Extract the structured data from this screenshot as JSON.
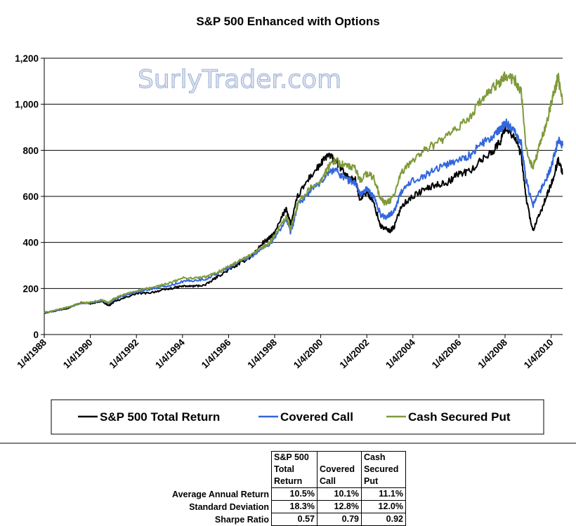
{
  "chart_data": {
    "type": "line",
    "title": "S&P 500 Enhanced with Options",
    "watermark": "SurlyTrader.com",
    "xlabel": "",
    "ylabel": "",
    "xlim": [
      1988.0,
      2010.5
    ],
    "ylim": [
      0,
      1200
    ],
    "y_ticks": [
      "0",
      "200",
      "400",
      "600",
      "800",
      "1,000",
      "1,200"
    ],
    "x_ticks": [
      "1/4/1988",
      "1/4/1990",
      "1/4/1992",
      "1/4/1994",
      "1/4/1996",
      "1/4/1998",
      "1/4/2000",
      "1/4/2002",
      "1/4/2004",
      "1/4/2006",
      "1/4/2008",
      "1/4/2010"
    ],
    "grid": "horizontal",
    "legend_position": "bottom",
    "series": [
      {
        "name": "S&P 500 Total Return",
        "color": "#000000",
        "x": [
          1988.0,
          1988.5,
          1989.0,
          1989.6,
          1990.0,
          1990.5,
          1990.8,
          1991.0,
          1991.5,
          1992.0,
          1992.5,
          1993.0,
          1993.5,
          1994.0,
          1994.5,
          1995.0,
          1995.5,
          1996.0,
          1996.5,
          1997.0,
          1997.5,
          1997.8,
          1998.0,
          1998.5,
          1998.7,
          1999.0,
          1999.5,
          2000.0,
          2000.3,
          2000.6,
          2000.9,
          2001.2,
          2001.5,
          2001.7,
          2002.0,
          2002.3,
          2002.6,
          2002.8,
          2003.0,
          2003.2,
          2003.5,
          2004.0,
          2004.5,
          2005.0,
          2005.5,
          2006.0,
          2006.5,
          2007.0,
          2007.5,
          2007.8,
          2008.0,
          2008.4,
          2008.7,
          2008.9,
          2009.2,
          2009.5,
          2009.8,
          2010.0,
          2010.2,
          2010.3,
          2010.5
        ],
        "values": [
          95,
          103,
          115,
          138,
          135,
          145,
          125,
          140,
          160,
          178,
          180,
          190,
          200,
          210,
          210,
          215,
          250,
          280,
          310,
          340,
          400,
          420,
          440,
          550,
          480,
          600,
          680,
          740,
          780,
          760,
          720,
          680,
          670,
          590,
          620,
          570,
          470,
          460,
          450,
          470,
          560,
          600,
          630,
          650,
          660,
          700,
          710,
          760,
          800,
          840,
          900,
          860,
          780,
          600,
          450,
          520,
          600,
          650,
          720,
          760,
          700
        ]
      },
      {
        "name": "Covered Call",
        "color": "#3366dd",
        "x": [
          1988.0,
          1988.5,
          1989.0,
          1989.6,
          1990.0,
          1990.5,
          1990.8,
          1991.0,
          1991.5,
          1992.0,
          1992.5,
          1993.0,
          1993.5,
          1994.0,
          1994.5,
          1995.0,
          1995.5,
          1996.0,
          1996.5,
          1997.0,
          1997.5,
          1997.8,
          1998.0,
          1998.5,
          1998.7,
          1999.0,
          1999.5,
          2000.0,
          2000.3,
          2000.6,
          2000.9,
          2001.2,
          2001.5,
          2001.7,
          2002.0,
          2002.3,
          2002.6,
          2002.8,
          2003.0,
          2003.2,
          2003.5,
          2004.0,
          2004.5,
          2005.0,
          2005.5,
          2006.0,
          2006.5,
          2007.0,
          2007.5,
          2007.8,
          2008.0,
          2008.4,
          2008.7,
          2008.9,
          2009.2,
          2009.5,
          2009.8,
          2010.0,
          2010.2,
          2010.3,
          2010.5
        ],
        "values": [
          95,
          104,
          117,
          135,
          138,
          147,
          135,
          150,
          170,
          185,
          195,
          205,
          215,
          230,
          235,
          240,
          265,
          290,
          320,
          340,
          375,
          395,
          420,
          500,
          440,
          560,
          620,
          660,
          700,
          720,
          690,
          670,
          660,
          610,
          630,
          600,
          520,
          510,
          520,
          540,
          620,
          670,
          690,
          720,
          740,
          760,
          780,
          830,
          860,
          890,
          920,
          890,
          830,
          680,
          560,
          620,
          680,
          730,
          800,
          850,
          820
        ]
      },
      {
        "name": "Cash Secured Put",
        "color": "#7f9a3a",
        "x": [
          1988.0,
          1988.5,
          1989.0,
          1989.6,
          1990.0,
          1990.5,
          1990.8,
          1991.0,
          1991.5,
          1992.0,
          1992.5,
          1993.0,
          1993.5,
          1994.0,
          1994.5,
          1995.0,
          1995.5,
          1996.0,
          1996.5,
          1997.0,
          1997.5,
          1997.8,
          1998.0,
          1998.5,
          1998.7,
          1999.0,
          1999.5,
          2000.0,
          2000.3,
          2000.6,
          2000.9,
          2001.2,
          2001.5,
          2001.7,
          2002.0,
          2002.3,
          2002.6,
          2002.8,
          2003.0,
          2003.2,
          2003.5,
          2004.0,
          2004.5,
          2005.0,
          2005.5,
          2006.0,
          2006.5,
          2007.0,
          2007.5,
          2007.8,
          2008.0,
          2008.4,
          2008.7,
          2008.9,
          2009.2,
          2009.5,
          2009.8,
          2010.0,
          2010.2,
          2010.3,
          2010.5
        ],
        "values": [
          95,
          105,
          118,
          137,
          140,
          150,
          138,
          155,
          175,
          190,
          200,
          212,
          225,
          245,
          245,
          250,
          270,
          295,
          320,
          345,
          380,
          400,
          430,
          510,
          460,
          570,
          630,
          670,
          720,
          760,
          740,
          730,
          720,
          670,
          700,
          680,
          590,
          570,
          580,
          610,
          700,
          760,
          800,
          830,
          860,
          900,
          950,
          1020,
          1070,
          1100,
          1120,
          1110,
          1050,
          820,
          720,
          820,
          920,
          1000,
          1080,
          1120,
          1000
        ]
      }
    ]
  },
  "stats_table": {
    "headers": [
      "S&P 500 Total Return",
      "Covered Call",
      "Cash Secured Put"
    ],
    "rows": [
      {
        "label": "Average Annual Return",
        "values": [
          "10.5%",
          "10.1%",
          "11.1%"
        ]
      },
      {
        "label": "Standard Deviation",
        "values": [
          "18.3%",
          "12.8%",
          "12.0%"
        ]
      },
      {
        "label": "Sharpe Ratio",
        "values": [
          "0.57",
          "0.79",
          "0.92"
        ]
      }
    ]
  }
}
